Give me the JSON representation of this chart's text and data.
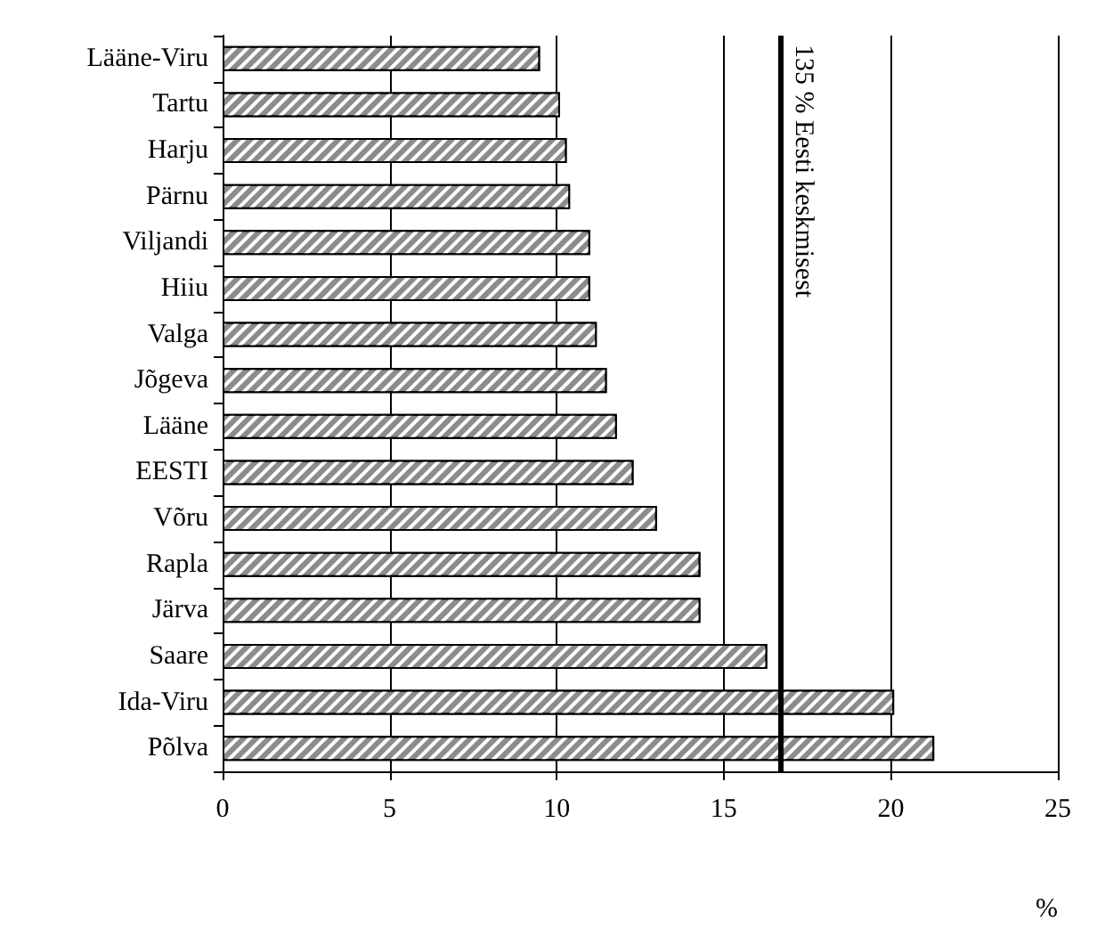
{
  "chart_data": {
    "type": "bar",
    "orientation": "horizontal",
    "xlabel": "%",
    "categories": [
      "Lääne-Viru",
      "Tartu",
      "Harju",
      "Pärnu",
      "Viljandi",
      "Hiiu",
      "Valga",
      "Jõgeva",
      "Lääne",
      "EESTI",
      "Võru",
      "Rapla",
      "Järva",
      "Saare",
      "Ida-Viru",
      "Põlva"
    ],
    "values": [
      9.5,
      10.1,
      10.3,
      10.4,
      11.0,
      11.0,
      11.2,
      11.5,
      11.8,
      12.3,
      13.0,
      14.3,
      14.3,
      16.3,
      20.1,
      21.3
    ],
    "color": "#8c8c8c",
    "xlim": [
      0,
      25
    ],
    "xticks": [
      0,
      5,
      10,
      15,
      20,
      25
    ],
    "grid": "x",
    "ref_lines": [
      {
        "axis": "x",
        "value": 16.7,
        "label": "135 % Eesti keskmisest",
        "color": "#000000"
      }
    ]
  }
}
